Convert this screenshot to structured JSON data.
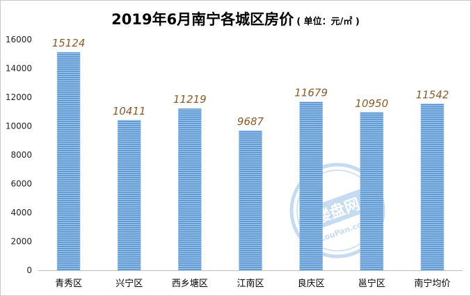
{
  "chart_data": {
    "type": "bar",
    "title": "2019年6月南宁各城区房价",
    "subtitle": "( 单位：元/㎡ )",
    "categories": [
      "青秀区",
      "兴宁区",
      "西乡塘区",
      "江南区",
      "良庆区",
      "邕宁区",
      "南宁均价"
    ],
    "values": [
      15124,
      10411,
      11219,
      9687,
      11679,
      10950,
      11542
    ],
    "xlabel": "",
    "ylabel": "",
    "ylim": [
      0,
      16000
    ],
    "yticks": [
      0,
      2000,
      4000,
      6000,
      8000,
      10000,
      12000,
      14000,
      16000
    ],
    "grid": false,
    "bar_color": "#5b9bd5",
    "label_color": "#8a5a2b"
  },
  "watermark": {
    "text": "楼盘网",
    "subtext": "LouPan.com"
  }
}
